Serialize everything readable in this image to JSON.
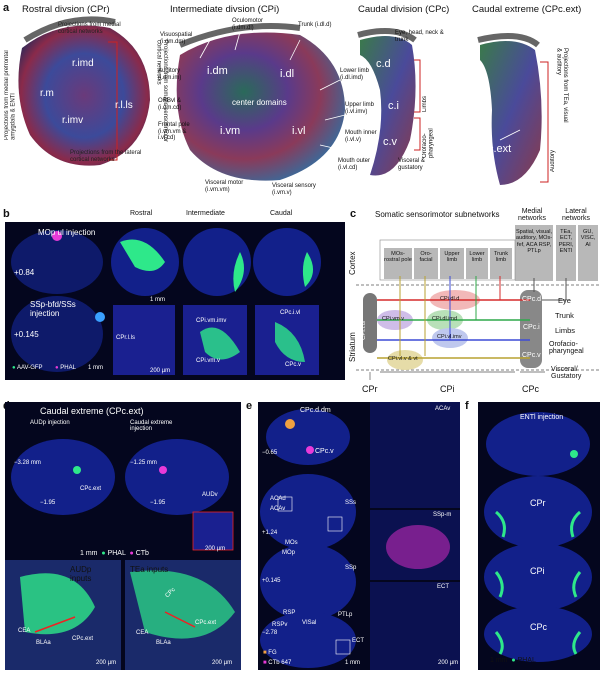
{
  "panels": {
    "a": "a",
    "b": "b",
    "c": "c",
    "d": "d",
    "e": "e",
    "f": "f"
  },
  "a": {
    "titles": [
      "Rostral divsion (CPr)",
      "Intermediate divsion (CPi)",
      "Caudal division (CPc)",
      "Caudal extreme (CPc.ext)"
    ],
    "cpr": {
      "labels": [
        "r.imd",
        "r.m",
        "r.imv",
        "r.l.ls"
      ],
      "annotations": [
        "Projections from medial cortical networks",
        "Projections from somatic sensorimotor cortical networks",
        "Projections from the lateral cortical networks",
        "Projections from medial prefrontal amygdala & ENTl"
      ]
    },
    "cpi": {
      "regions": [
        "i.dm",
        "i.dl",
        "center domains",
        "i.vm",
        "i.vl"
      ],
      "annotations": [
        "Oculomotor (i.dm.dl)",
        "Trunk (i.dl.d)",
        "Visuospatial (i.dm.dm)",
        "Auditory (i.dm.im)",
        "ORBvl & (i.dm.cd)",
        "Frontal pole (i.vm.vm & i.vl.cd)",
        "Lower limb (i.dl.imd)",
        "Upper limb (i.vl.imv)",
        "Mouth inner (i.vl.v)",
        "Mouth outer (i.vl.cd)",
        "Visceral motor (i.vm.vm)",
        "Visceral sensory (i.vm.v)"
      ]
    },
    "cpc": {
      "labels": [
        "c.d",
        "c.i",
        "c.v"
      ],
      "annotations": [
        "Eye, head, neck & trunk",
        "Limbs",
        "Orofacio-pharyngeal",
        "Visceral & gustatory"
      ]
    },
    "cpcext": {
      "labels": [
        "c.ext"
      ],
      "annotations": [
        "Projections from TEa, visual & auditory",
        "Auditory"
      ]
    }
  },
  "b": {
    "labels": [
      "MOp ul injection",
      "SSp-bfd/SSs injection",
      "+0.84",
      "+0.145"
    ],
    "cols": [
      "Rostral",
      "Intermediate",
      "Caudal"
    ],
    "region_labels": [
      "CPr.l.ls",
      "CPi.vm.imv",
      "CPi.vm.v",
      "CPc.i.vl",
      "CPc.v"
    ],
    "legend": [
      "AAV-GFP",
      "PHAL"
    ],
    "scales": [
      "1 mm",
      "1 mm",
      "200 µm"
    ]
  },
  "c": {
    "title": "Somatic sensorimotor subnetworks",
    "medial_title": "Medial networks",
    "lateral_title": "Lateral networks",
    "cortex_label": "Cortex",
    "striatum_label": "Striatum",
    "boxes": [
      "MOs-rostral pole",
      "Oro-facial",
      "Upper limb",
      "Lower limb",
      "Trunk limb"
    ],
    "medial_box": "Spatial, visual, auditory, MOs-fef, ACA RSP, PTLp",
    "lateral_boxes": [
      "TEa, ECT, PERI, ENTI",
      "GU, VISC, AI"
    ],
    "striatal": [
      "CPr.l.ls",
      "CPi.vm.v",
      "CPi.dl.d",
      "CPi.dl.imd",
      "CPi.vl.imv",
      "CPi.vl.v & vt",
      "CPc.d",
      "CPc.i",
      "CPc.v"
    ],
    "outputs": [
      "Eye",
      "Trunk",
      "Limbs",
      "Orofacio-pharyngeal",
      "Visceral/ Gustatory"
    ],
    "bottom": [
      "CPr",
      "CPi",
      "CPc"
    ],
    "colors": [
      "#d62b2b",
      "#8a3ed6",
      "#3d4bd6",
      "#2fa84a",
      "#b8a230"
    ]
  },
  "d": {
    "title": "Caudal extreme (CPc.ext)",
    "top_labels": [
      "AUDp injection",
      "Caudal extreme injection",
      "−3.28 mm",
      "−1.25 mm",
      "−1.95",
      "−1.95",
      "CPc.ext",
      "AUDv"
    ],
    "legend": [
      "PHAL",
      "CTb"
    ],
    "scales": [
      "1 mm",
      "200 µm"
    ],
    "bottom_left": [
      "AUDp inputs",
      "CEA",
      "BLAa",
      "CPc.ext",
      "200 µm"
    ],
    "bottom_right": [
      "TEa inputs",
      "CPc",
      "CPc.ext",
      "CEA",
      "BLAa",
      "200 µm"
    ]
  },
  "e": {
    "labels": [
      "CPc.d.dm",
      "CPc.v",
      "−0.65",
      "+1.24",
      "+0.145",
      "−2.78",
      "ACAv",
      "SSp-m",
      "ECT",
      "ACAd",
      "ACAv",
      "SSs",
      "MOs",
      "MOp",
      "SSp",
      "RSP",
      "VISal",
      "PTLp",
      "RSPv",
      "ECT"
    ],
    "legend": [
      "FG",
      "CTb 647"
    ],
    "scales": [
      "1 mm",
      "200 µm"
    ]
  },
  "f": {
    "labels": [
      "ENTl injection",
      "CPr",
      "CPi",
      "CPc"
    ],
    "legend": [
      "PHAL"
    ],
    "scales": [
      "1 mm"
    ]
  }
}
